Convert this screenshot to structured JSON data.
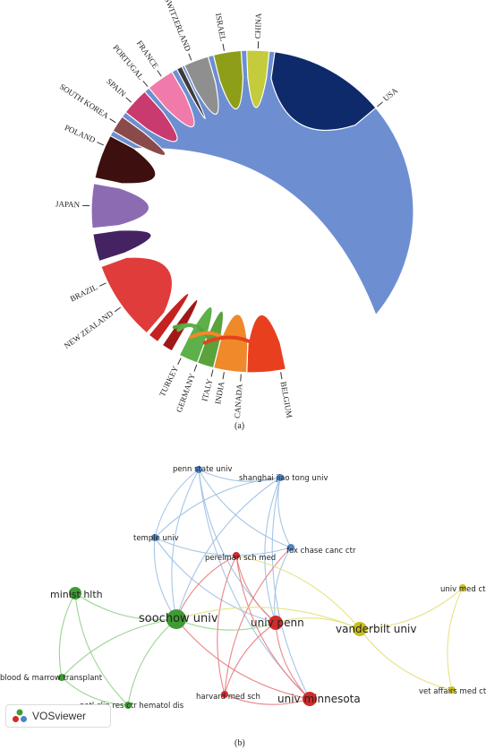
{
  "captions": {
    "a": "(a)",
    "b": "(b)"
  },
  "chord": {
    "countries": [
      {
        "name": "USA",
        "color": "#6d8fd1",
        "start": 292,
        "end": 490
      },
      {
        "name": "BELGIUM",
        "color": "#e8401f",
        "start": 168,
        "end": 182
      },
      {
        "name": "CANADA",
        "color": "#f0892a",
        "start": 182,
        "end": 194
      },
      {
        "name": "INDIA",
        "color": "#59a23c",
        "start": 194,
        "end": 200
      },
      {
        "name": "ITALY",
        "color": "#5db04a",
        "start": 200,
        "end": 207
      },
      {
        "name": "GERMANY",
        "color": "#a01818",
        "start": 210,
        "end": 214
      },
      {
        "name": "TURKEY",
        "color": "#c52222",
        "start": 216,
        "end": 220
      },
      {
        "name": "NEW ZEALAND",
        "color": "#e03c3c",
        "start": 221,
        "end": 250
      },
      {
        "name": "BRAZIL",
        "color": "#452262",
        "start": 252,
        "end": 262
      },
      {
        "name": "JAPAN",
        "color": "#8c6bb3",
        "start": 264,
        "end": 280
      },
      {
        "name": "POLAND",
        "color": "#3e0f0f",
        "start": 282,
        "end": 298
      },
      {
        "name": "SOUTH KOREA",
        "color": "#8b4a4a",
        "start": 300,
        "end": 306
      },
      {
        "name": "SPAIN",
        "color": "#c93a6e",
        "start": 308,
        "end": 318
      },
      {
        "name": "PORTUGAL",
        "color": "#f07baa",
        "start": 320,
        "end": 330
      },
      {
        "name": "FRANCE",
        "color": "#3b3b3b",
        "start": 332,
        "end": 334
      },
      {
        "name": "SWITZERLAND",
        "color": "#8f8f8f",
        "start": 335,
        "end": 344
      },
      {
        "name": "ISRAEL",
        "color": "#8e9e18",
        "start": 346,
        "end": 356
      },
      {
        "name": "CHINA",
        "color": "#c4cc3c",
        "start": 358,
        "end": 366
      },
      {
        "name": "USA-top",
        "color": "#0f2a6b",
        "start": 368,
        "end": 410
      }
    ],
    "labels": [
      {
        "text": "USA",
        "angle": 50
      },
      {
        "text": "CHINA",
        "angle": 2
      },
      {
        "text": "ISRAEL",
        "angle": 350
      },
      {
        "text": "SWITZERLAND",
        "angle": 338
      },
      {
        "text": "FRANCE",
        "angle": 326
      },
      {
        "text": "PORTUGAL",
        "angle": 320
      },
      {
        "text": "SPAIN",
        "angle": 312
      },
      {
        "text": "SOUTH KOREA",
        "angle": 303
      },
      {
        "text": "POLAND",
        "angle": 294
      },
      {
        "text": "JAPAN",
        "angle": 272
      },
      {
        "text": "BRAZIL",
        "angle": 244
      },
      {
        "text": "NEW ZEALAND",
        "angle": 234
      },
      {
        "text": "TURKEY",
        "angle": 206
      },
      {
        "text": "GERMANY",
        "angle": 200
      },
      {
        "text": "ITALY",
        "angle": 194
      },
      {
        "text": "INDIA",
        "angle": 190
      },
      {
        "text": "CANADA",
        "angle": 184
      },
      {
        "text": "BELGIUM",
        "angle": 170
      }
    ]
  },
  "network": {
    "nodes": [
      {
        "id": "penn-state-univ",
        "label": "penn state univ",
        "cluster": "blue",
        "size": 4
      },
      {
        "id": "shanghai-jiao-tong-univ",
        "label": "shanghai jiao tong univ",
        "cluster": "blue",
        "size": 4
      },
      {
        "id": "temple-univ",
        "label": "temple univ",
        "cluster": "blue",
        "size": 4
      },
      {
        "id": "fox-chase-canc-ctr",
        "label": "fox chase canc ctr",
        "cluster": "blue",
        "size": 4
      },
      {
        "id": "perelman-sch-med",
        "label": "perelman sch med",
        "cluster": "red",
        "size": 4
      },
      {
        "id": "minist-hlth",
        "label": "minist hlth",
        "cluster": "green",
        "size": 7
      },
      {
        "id": "soochow-univ",
        "label": "soochow univ",
        "cluster": "green",
        "size": 11
      },
      {
        "id": "univ-penn",
        "label": "univ penn",
        "cluster": "red",
        "size": 8
      },
      {
        "id": "vanderbilt-univ",
        "label": "vanderbilt univ",
        "cluster": "yellow",
        "size": 8
      },
      {
        "id": "univ-med-ctr",
        "label": "univ med ctr",
        "cluster": "yellow",
        "size": 4
      },
      {
        "id": "blood-marrow-transplant",
        "label": "blood & marrow transplant",
        "cluster": "green",
        "size": 4
      },
      {
        "id": "natl-clin-res-ctr-hematol-dis",
        "label": "natl clin res ctr hematol dis",
        "cluster": "green",
        "size": 4
      },
      {
        "id": "harvard-med-sch",
        "label": "harvard med sch",
        "cluster": "red",
        "size": 4
      },
      {
        "id": "univ-minnesota",
        "label": "univ minnesota",
        "cluster": "red",
        "size": 8
      },
      {
        "id": "vet-affairs-med-ctr",
        "label": "vet affairs med ctr",
        "cluster": "yellow",
        "size": 4
      }
    ],
    "cluster_colors": {
      "blue": "#4a86c8",
      "red": "#d02b2b",
      "green": "#3f9b35",
      "yellow": "#c8bf1f"
    },
    "edge_colors": {
      "blue": "#9dbfe3",
      "red": "#e77a7a",
      "green": "#8fcf86",
      "yellow": "#e7df7a"
    },
    "watermark": "VOSviewer"
  }
}
